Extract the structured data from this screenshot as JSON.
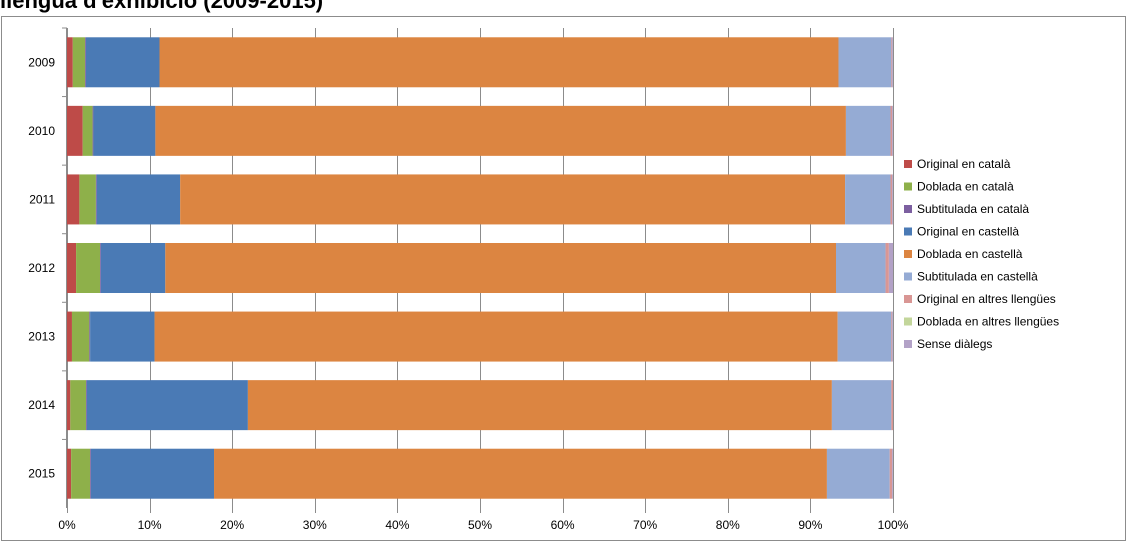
{
  "chart_data": {
    "type": "bar",
    "orientation": "horizontal",
    "stacked": "percent",
    "title": "llengua d'exhibició (2009-2015)",
    "categories": [
      "2009",
      "2010",
      "2011",
      "2012",
      "2013",
      "2014",
      "2015"
    ],
    "xlim": [
      0,
      100
    ],
    "x_ticks": [
      "0%",
      "10%",
      "20%",
      "30%",
      "40%",
      "50%",
      "60%",
      "70%",
      "80%",
      "90%",
      "100%"
    ],
    "grid": "vertical",
    "legend_position": "right",
    "series": [
      {
        "name": "Original en català",
        "color": "#be4b48",
        "values": [
          0.7,
          1.9,
          1.5,
          1.1,
          0.6,
          0.4,
          0.5
        ]
      },
      {
        "name": "Doblada en català",
        "color": "#8eb04a",
        "values": [
          1.5,
          1.2,
          2.0,
          2.9,
          2.1,
          1.9,
          2.3
        ]
      },
      {
        "name": "Subtitulada en català",
        "color": "#7c5fa0",
        "values": [
          0.1,
          0.1,
          0.1,
          0.1,
          0.1,
          0.1,
          0.1
        ]
      },
      {
        "name": "Original en castellà",
        "color": "#4a7ab5",
        "values": [
          8.9,
          7.5,
          10.1,
          7.8,
          7.8,
          19.5,
          14.9
        ]
      },
      {
        "name": "Doblada en castellà",
        "color": "#dc8541",
        "values": [
          82.2,
          83.6,
          80.5,
          81.2,
          82.7,
          70.7,
          74.2
        ]
      },
      {
        "name": "Subtitulada en castellà",
        "color": "#95abd4",
        "values": [
          6.4,
          5.4,
          5.5,
          6.0,
          6.5,
          7.2,
          7.6
        ]
      },
      {
        "name": "Original en altres llengües",
        "color": "#d99694",
        "values": [
          0.1,
          0.2,
          0.2,
          0.4,
          0.1,
          0.2,
          0.3
        ]
      },
      {
        "name": "Doblada en altres llengües",
        "color": "#c3d69b",
        "values": [
          0.0,
          0.0,
          0.0,
          0.0,
          0.0,
          0.0,
          0.0
        ]
      },
      {
        "name": "Sense diàlegs",
        "color": "#b3a2c7",
        "values": [
          0.1,
          0.1,
          0.1,
          0.5,
          0.1,
          0.0,
          0.1
        ]
      }
    ]
  }
}
